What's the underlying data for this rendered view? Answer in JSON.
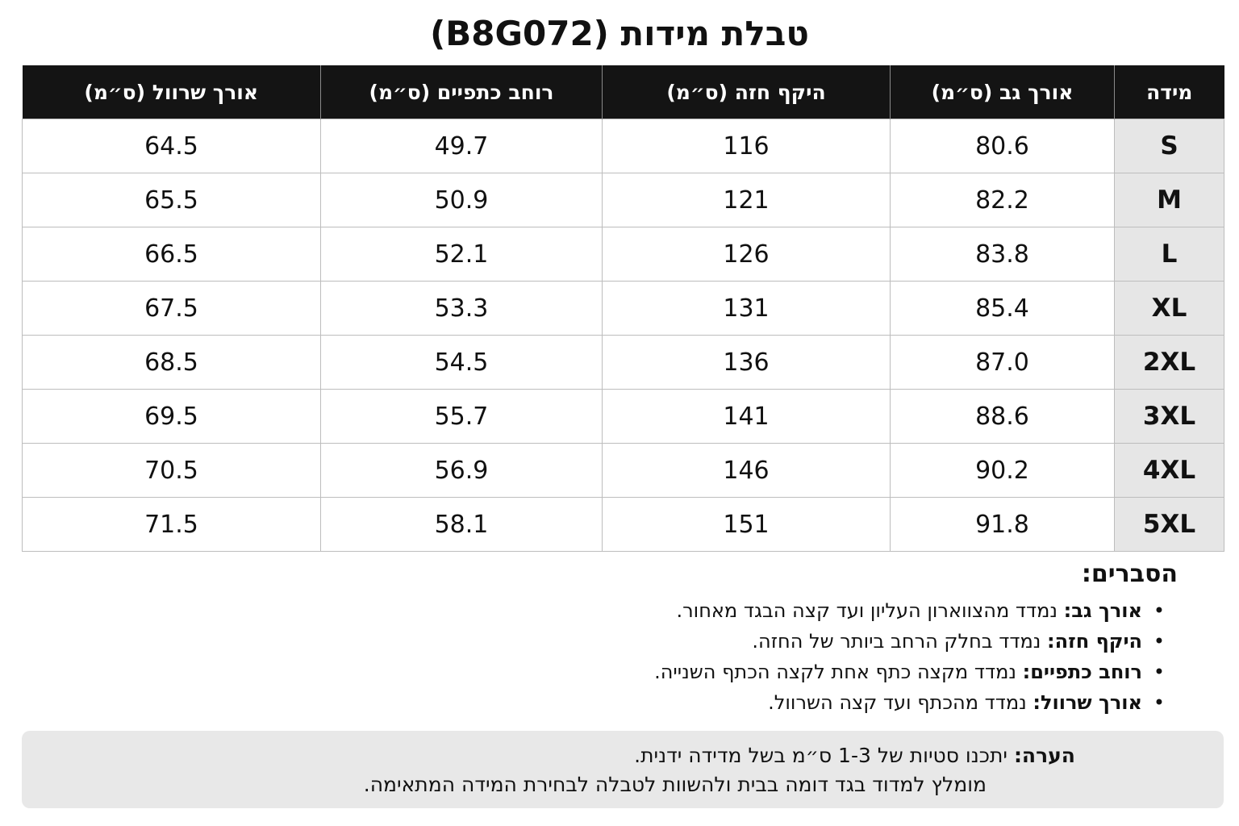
{
  "title": "טבלת מידות (B8G072)",
  "table": {
    "headers": [
      "מידה",
      "אורך גב (ס״מ)",
      "היקף חזה (ס״מ)",
      "רוחב כתפיים (ס״מ)",
      "אורך שרוול (ס״מ)"
    ],
    "rows": [
      [
        "S",
        "80.6",
        "116",
        "49.7",
        "64.5"
      ],
      [
        "M",
        "82.2",
        "121",
        "50.9",
        "65.5"
      ],
      [
        "L",
        "83.8",
        "126",
        "52.1",
        "66.5"
      ],
      [
        "XL",
        "85.4",
        "131",
        "53.3",
        "67.5"
      ],
      [
        "2XL",
        "87.0",
        "136",
        "54.5",
        "68.5"
      ],
      [
        "3XL",
        "88.6",
        "141",
        "55.7",
        "69.5"
      ],
      [
        "4XL",
        "90.2",
        "146",
        "56.9",
        "70.5"
      ],
      [
        "5XL",
        "91.8",
        "151",
        "58.1",
        "71.5"
      ]
    ]
  },
  "explanations": {
    "heading": "הסברים:",
    "items": [
      {
        "term": "אורך גב:",
        "text": " נמדד מהצווארון העליון ועד קצה הבגד מאחור."
      },
      {
        "term": "היקף חזה:",
        "text": " נמדד בחלק הרחב ביותר של החזה."
      },
      {
        "term": "רוחב כתפיים:",
        "text": " נמדד מקצה כתף אחת לקצה הכתף השנייה."
      },
      {
        "term": "אורך שרוול:",
        "text": " נמדד מהכתף ועד קצה השרוול."
      }
    ]
  },
  "note": {
    "label": "הערה:",
    "line1": " יתכנו סטיות של 1-3 ס״מ בשל מדידה ידנית.",
    "line2": "מומלץ למדוד בגד דומה בבית ולהשוות לטבלה לבחירת המידה המתאימה."
  }
}
